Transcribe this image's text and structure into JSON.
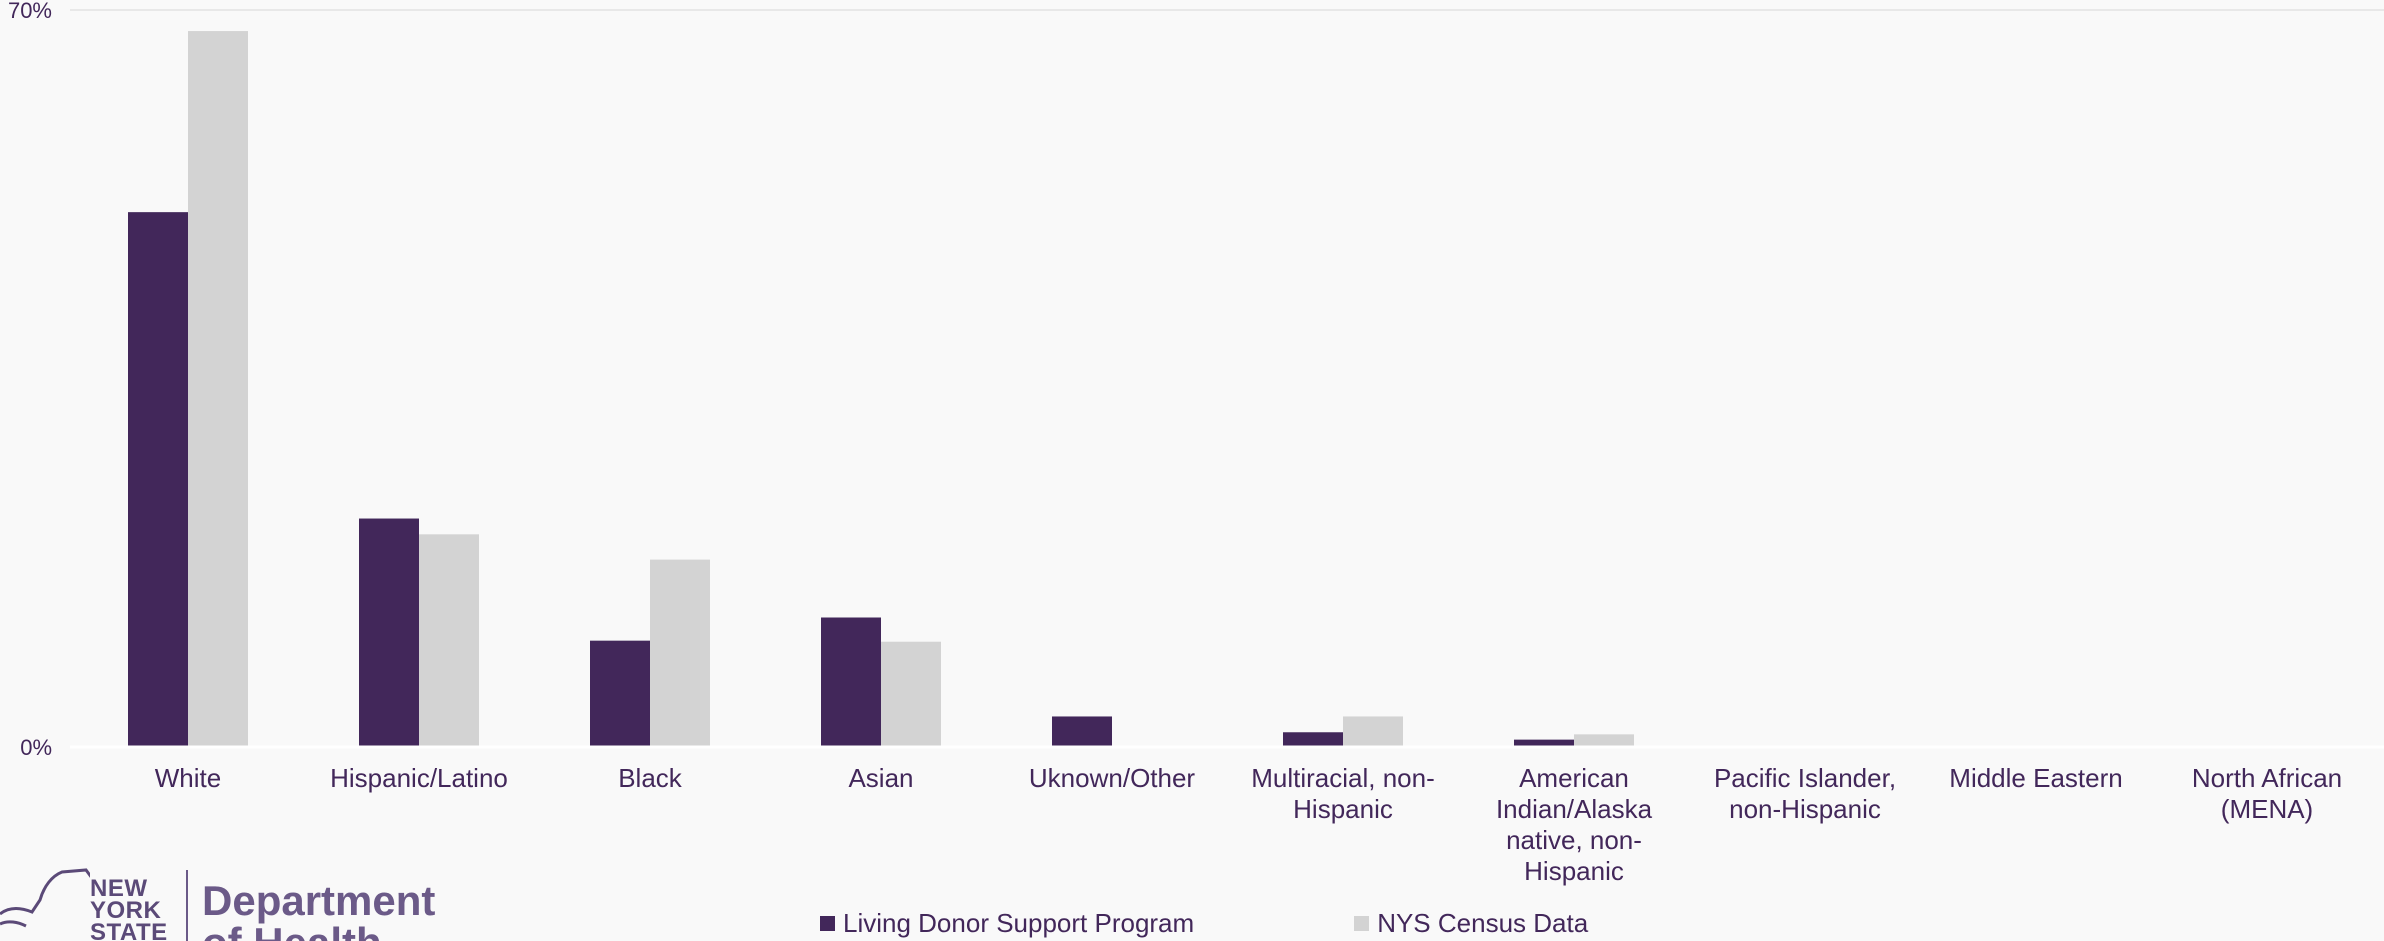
{
  "chart_data": {
    "type": "bar",
    "categories": [
      [
        "White"
      ],
      [
        "Hispanic/Latino"
      ],
      [
        "Black"
      ],
      [
        "Asian"
      ],
      [
        "Uknown/Other"
      ],
      [
        "Multiracial, non-",
        "Hispanic"
      ],
      [
        "American",
        "Indian/Alaska",
        "native, non-",
        "Hispanic"
      ],
      [
        "Pacific Islander,",
        "non-Hispanic"
      ],
      [
        "Middle Eastern"
      ],
      [
        "North African",
        "(MENA)"
      ]
    ],
    "series": [
      {
        "name": "Living Donor Support Program",
        "color": "#42275a",
        "values": [
          50.8,
          21.7,
          10.1,
          12.3,
          2.9,
          1.4,
          0.7,
          0,
          0,
          0
        ]
      },
      {
        "name": "NYS Census Data",
        "color": "#d3d3d3",
        "values": [
          68.0,
          20.2,
          17.8,
          10.0,
          0,
          2.9,
          1.2,
          0.1,
          0,
          0
        ]
      }
    ],
    "y_ticks": [
      "0%",
      "70%"
    ],
    "ylim": [
      0,
      70
    ],
    "gridlines": [
      70
    ],
    "legend_position": "bottom"
  },
  "logo": {
    "state_lines": [
      "NEW",
      "YORK",
      "STATE"
    ],
    "department_lines": [
      "Department",
      "of Health"
    ]
  }
}
